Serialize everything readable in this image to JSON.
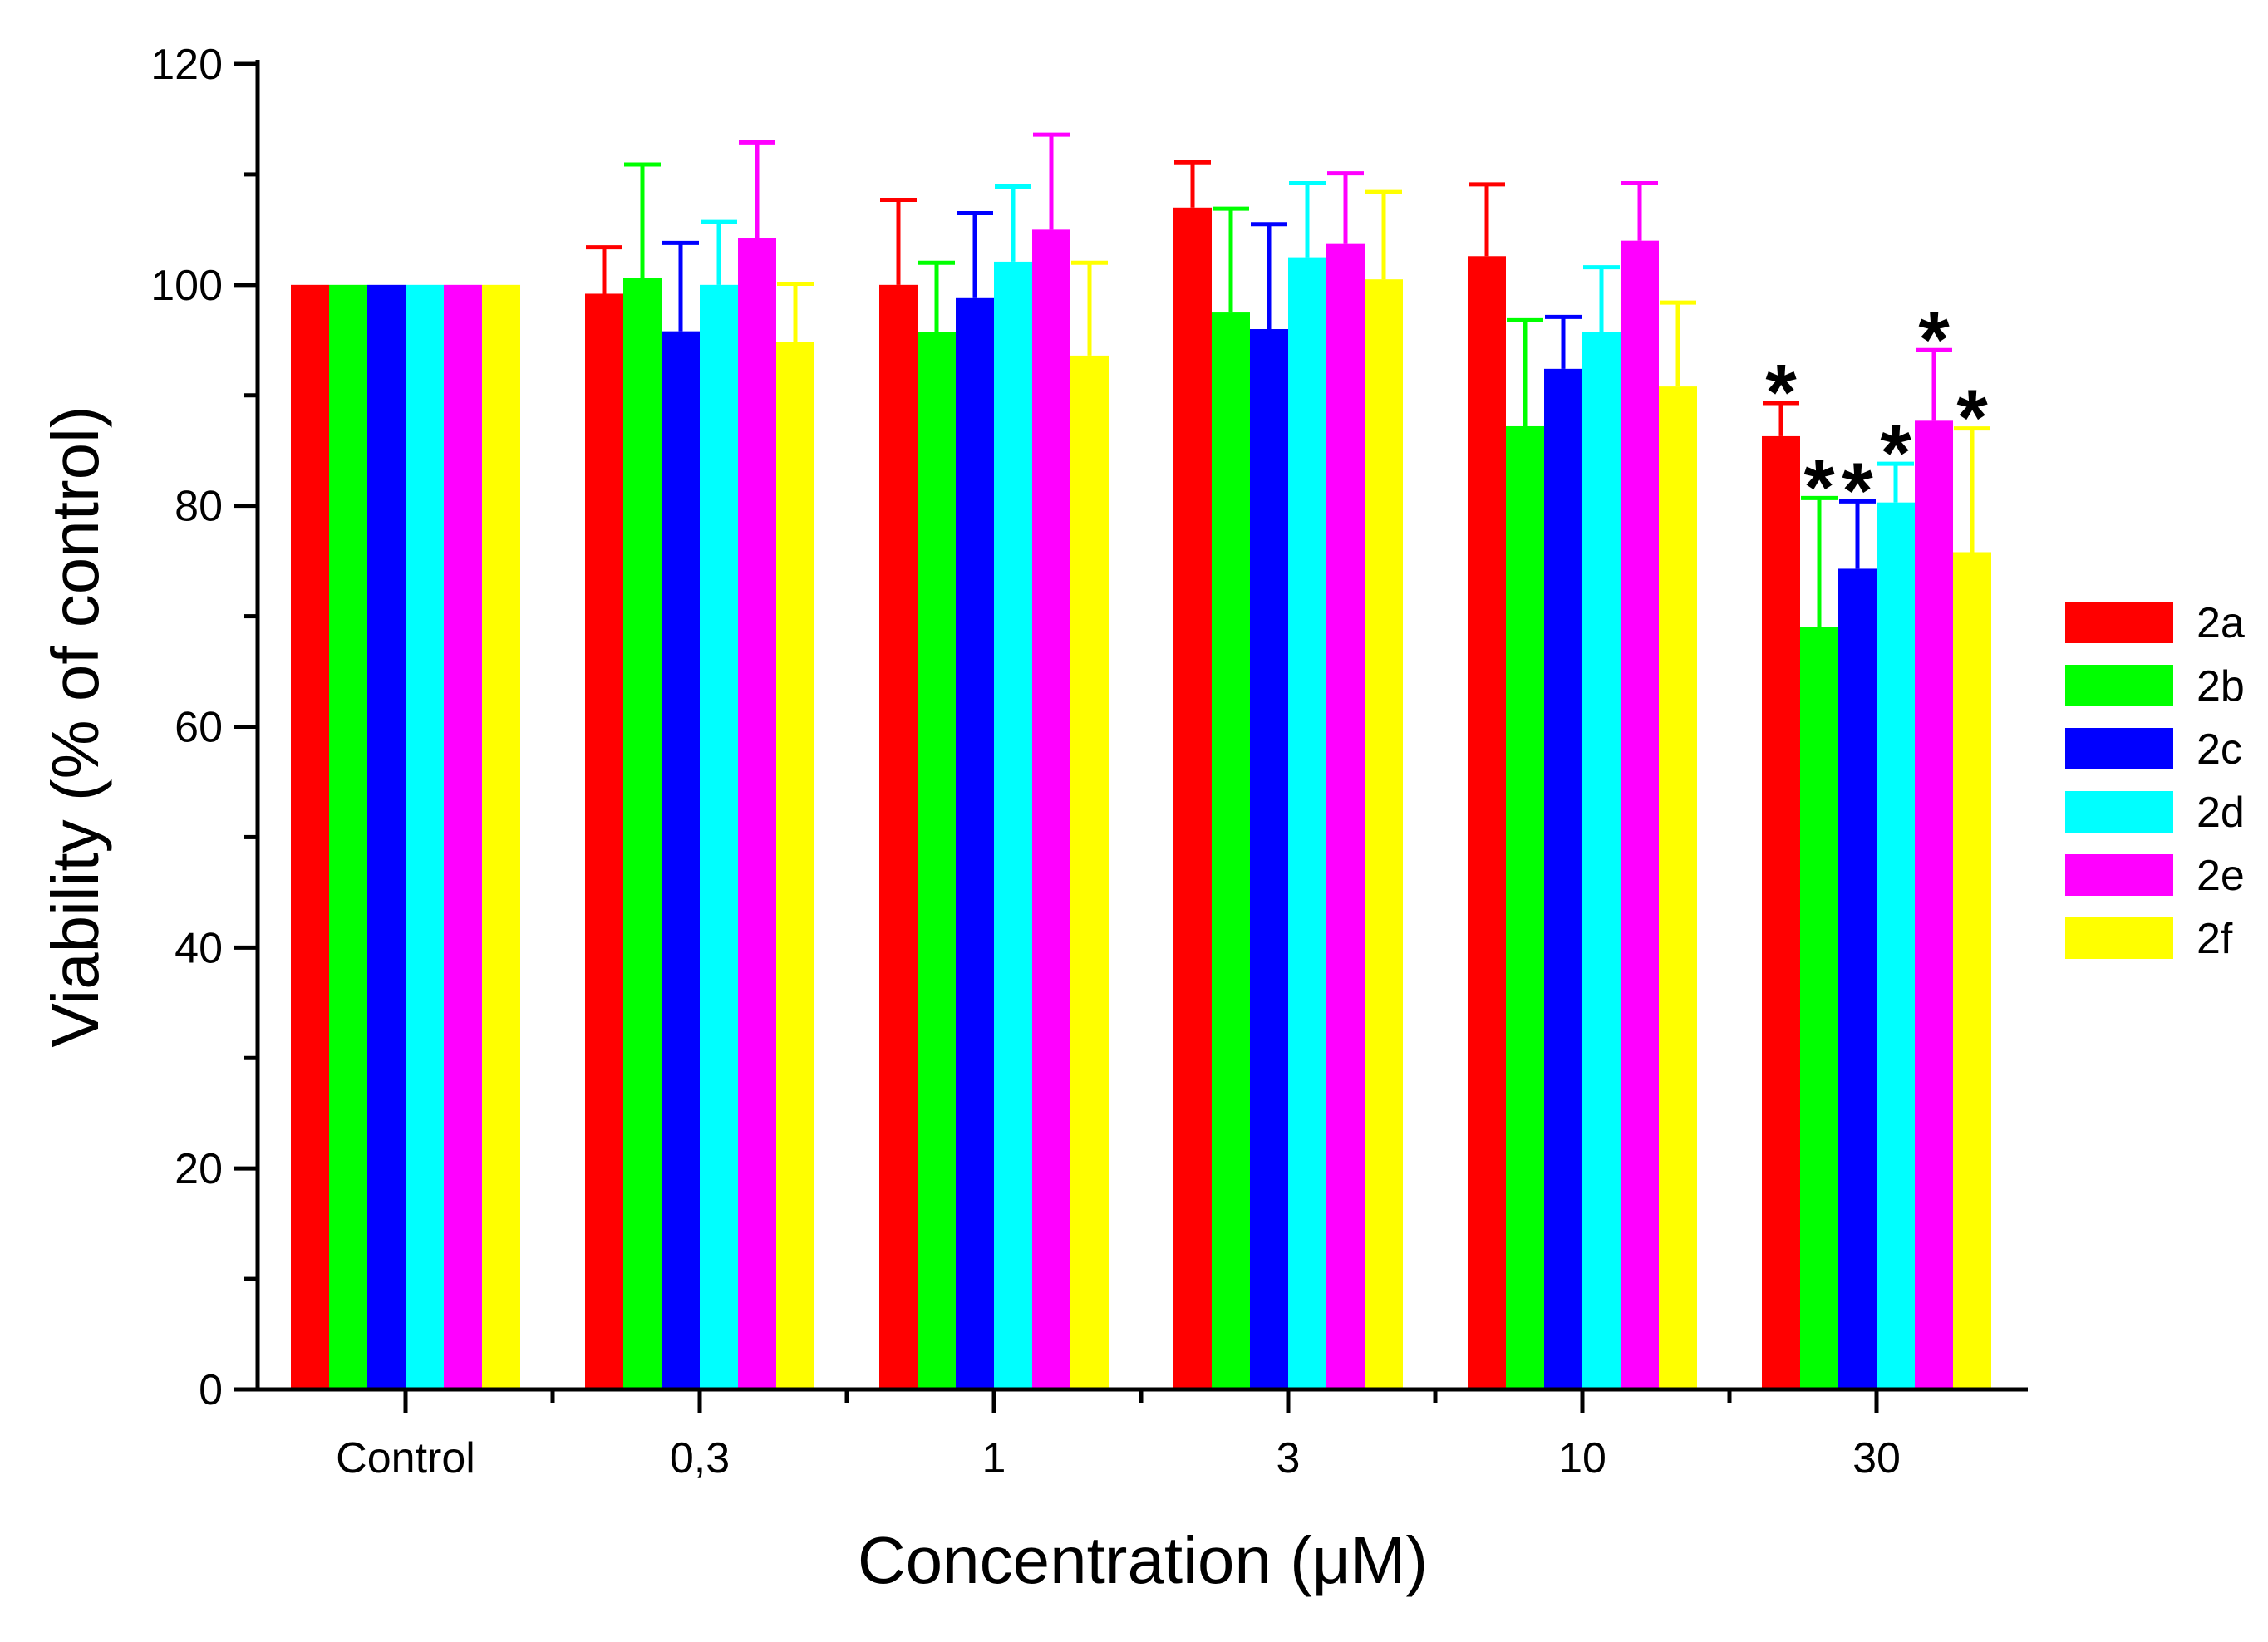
{
  "chart_data": {
    "type": "bar",
    "title": "",
    "xlabel": "Concentration (μM)",
    "ylabel": "Viability (% of control)",
    "ylim": [
      0,
      120
    ],
    "yticks": [
      "0",
      "20",
      "40",
      "60",
      "80",
      "100",
      "120"
    ],
    "grid": false,
    "legend_position": "right",
    "categories": [
      "Control",
      "0,3",
      "1",
      "3",
      "10",
      "30"
    ],
    "series": [
      {
        "name": "2a",
        "color": "#ff0000",
        "values": [
          100,
          99.2,
          100,
          107,
          102.6,
          86.3
        ],
        "errors": [
          0,
          4.2,
          7.7,
          4.1,
          6.5,
          3.0
        ],
        "significant": [
          false,
          false,
          false,
          false,
          false,
          true
        ]
      },
      {
        "name": "2b",
        "color": "#00ff00",
        "values": [
          100,
          100.6,
          95.7,
          97.5,
          87.2,
          69.0
        ],
        "errors": [
          0,
          10.3,
          6.3,
          9.4,
          9.6,
          11.7
        ],
        "significant": [
          false,
          false,
          false,
          false,
          false,
          true
        ]
      },
      {
        "name": "2c",
        "color": "#0000ff",
        "values": [
          100,
          95.8,
          98.8,
          96.0,
          92.4,
          74.3
        ],
        "errors": [
          0,
          8.0,
          7.7,
          9.5,
          4.7,
          6.1
        ],
        "significant": [
          false,
          false,
          false,
          false,
          false,
          true
        ]
      },
      {
        "name": "2d",
        "color": "#00ffff",
        "values": [
          100,
          100.0,
          102.1,
          102.5,
          95.7,
          80.3
        ],
        "errors": [
          0,
          5.7,
          6.8,
          6.7,
          5.9,
          3.5
        ],
        "significant": [
          false,
          false,
          false,
          false,
          false,
          true
        ]
      },
      {
        "name": "2e",
        "color": "#ff00ff",
        "values": [
          100,
          104.2,
          105.0,
          103.7,
          104.0,
          87.7
        ],
        "errors": [
          0,
          8.7,
          8.6,
          6.4,
          5.2,
          6.4
        ],
        "significant": [
          false,
          false,
          false,
          false,
          false,
          true
        ]
      },
      {
        "name": "2f",
        "color": "#ffff00",
        "values": [
          100,
          94.8,
          93.6,
          100.5,
          90.8,
          75.8
        ],
        "errors": [
          0,
          5.3,
          8.4,
          7.9,
          7.6,
          11.2
        ],
        "significant": [
          false,
          false,
          false,
          false,
          false,
          true
        ]
      }
    ],
    "significance_marker": "*"
  }
}
